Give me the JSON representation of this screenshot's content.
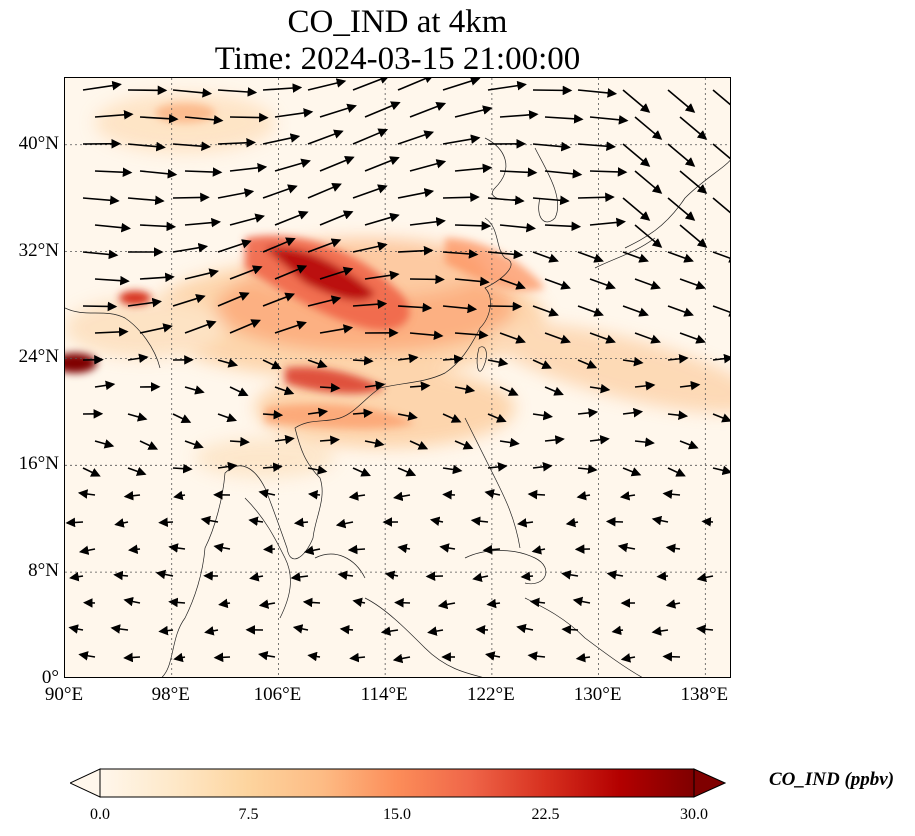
{
  "title": {
    "line1": "CO_IND at 4km",
    "line2": "Time: 2024-03-15 21:00:00"
  },
  "map": {
    "extent": {
      "lon_min": 90,
      "lon_max": 140,
      "lat_min": 0,
      "lat_max": 45
    },
    "lon_ticks": [
      {
        "value": 90,
        "label": "90°E"
      },
      {
        "value": 98,
        "label": "98°E"
      },
      {
        "value": 106,
        "label": "106°E"
      },
      {
        "value": 114,
        "label": "114°E"
      },
      {
        "value": 122,
        "label": "122°E"
      },
      {
        "value": 130,
        "label": "130°E"
      },
      {
        "value": 138,
        "label": "138°E"
      }
    ],
    "lat_ticks": [
      {
        "value": 0,
        "label": "0°"
      },
      {
        "value": 8,
        "label": "8°N"
      },
      {
        "value": 16,
        "label": "16°N"
      },
      {
        "value": 24,
        "label": "24°N"
      },
      {
        "value": 32,
        "label": "32°N"
      },
      {
        "value": 40,
        "label": "40°N"
      }
    ],
    "gridlines": true,
    "coastlines": true,
    "wind_vectors": true
  },
  "colorbar": {
    "label": "CO_IND (ppbv)",
    "min": 0.0,
    "max": 30.0,
    "extend": "both",
    "colormap": [
      "#fff7ec",
      "#fee8c8",
      "#fdd49e",
      "#fdbb84",
      "#fc8d59",
      "#ef6548",
      "#d7301f",
      "#b30000",
      "#7f0000"
    ],
    "ticks": [
      "0.0",
      "7.5",
      "15.0",
      "22.5",
      "30.0"
    ]
  }
}
